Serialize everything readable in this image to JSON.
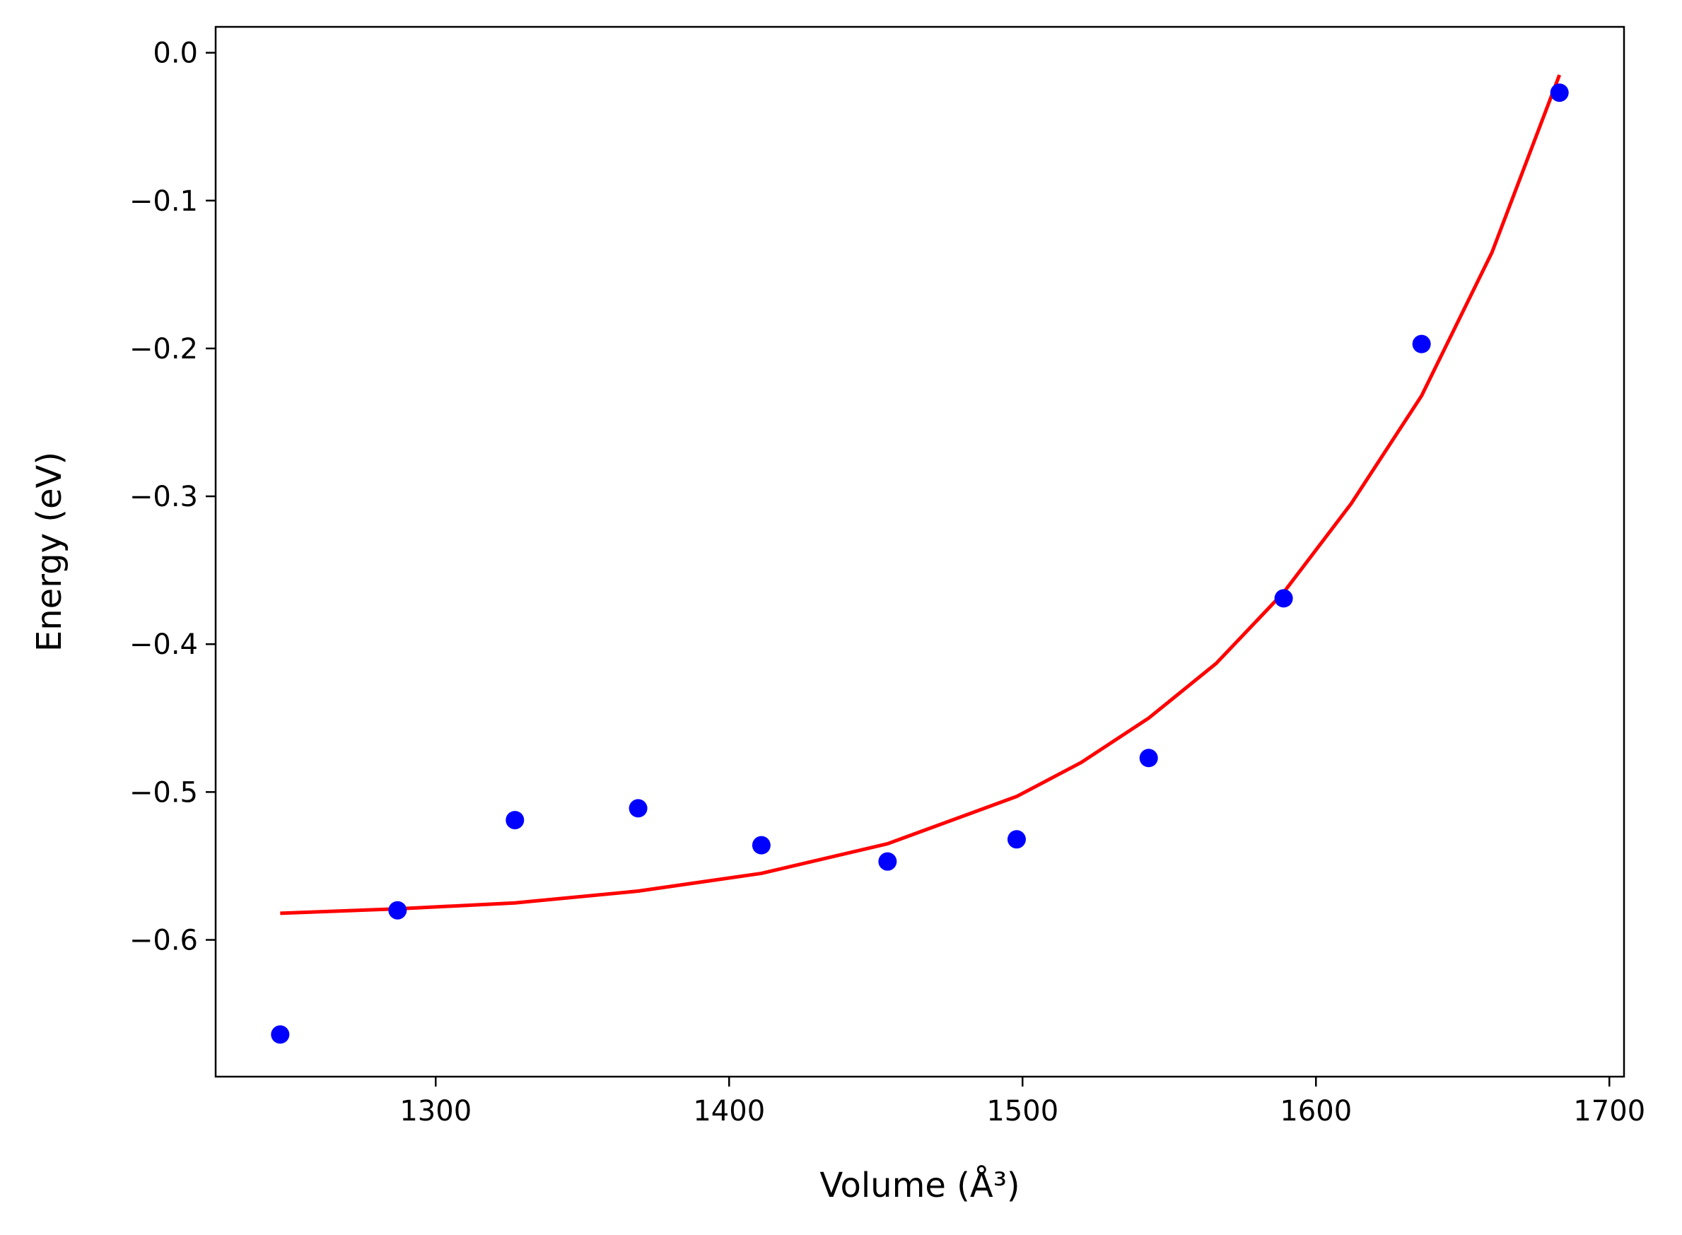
{
  "chart_data": {
    "type": "scatter",
    "title": "",
    "xlabel": "Volume (Å³)",
    "ylabel": "Energy (eV)",
    "xlim": [
      1225,
      1705
    ],
    "ylim": [
      -0.6925,
      0.0175
    ],
    "xticks": [
      1300,
      1400,
      1500,
      1600,
      1700
    ],
    "xtick_labels": [
      "1300",
      "1400",
      "1500",
      "1600",
      "1700"
    ],
    "yticks": [
      0.0,
      -0.1,
      -0.2,
      -0.3,
      -0.4,
      -0.5,
      -0.6
    ],
    "ytick_labels": [
      "0.0",
      "−0.1",
      "−0.2",
      "−0.3",
      "−0.4",
      "−0.5",
      "−0.6"
    ],
    "grid": false,
    "series": [
      {
        "kind": "scatter",
        "color": "#0000ff",
        "x": [
          1247,
          1287,
          1327,
          1369,
          1411,
          1454,
          1498,
          1543,
          1589,
          1636,
          1683
        ],
        "y": [
          -0.664,
          -0.58,
          -0.519,
          -0.511,
          -0.536,
          -0.547,
          -0.532,
          -0.477,
          -0.369,
          -0.197,
          -0.027
        ]
      },
      {
        "kind": "line",
        "color": "#ff0000",
        "x": [
          1247,
          1287,
          1327,
          1369,
          1411,
          1454,
          1498,
          1520,
          1543,
          1566,
          1589,
          1612,
          1636,
          1660,
          1683
        ],
        "y": [
          -0.582,
          -0.579,
          -0.575,
          -0.567,
          -0.555,
          -0.535,
          -0.503,
          -0.48,
          -0.45,
          -0.413,
          -0.365,
          -0.305,
          -0.232,
          -0.135,
          -0.015
        ]
      }
    ]
  }
}
